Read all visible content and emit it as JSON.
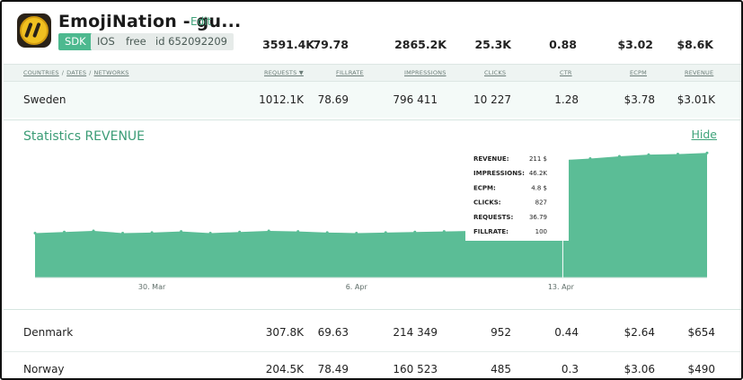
{
  "app": {
    "title": "EmojiNation - gu...",
    "edit_label": "Edit",
    "tags": [
      "SDK",
      "IOS",
      "free",
      "id 652092209"
    ]
  },
  "summary": [
    "3591.4K",
    "79.78",
    "2865.2K",
    "25.3K",
    "0.88",
    "$3.02",
    "$8.6K"
  ],
  "breadcrumb": [
    "COUNTRIES",
    "DATES",
    "NETWORKS"
  ],
  "columns": [
    "REQUESTS ▼",
    "FILLRATE",
    "IMPRESSIONS",
    "CLICKS",
    "CTR",
    "ECPM",
    "REVENUE"
  ],
  "rows": [
    {
      "name": "Sweden",
      "values": [
        "1012.1K",
        "78.69",
        "796 411",
        "10 227",
        "1.28",
        "$3.78",
        "$3.01K"
      ]
    },
    {
      "name": "Denmark",
      "values": [
        "307.8K",
        "69.63",
        "214 349",
        "952",
        "0.44",
        "$2.64",
        "$654"
      ]
    },
    {
      "name": "Norway",
      "values": [
        "204.5K",
        "78.49",
        "160 523",
        "485",
        "0.3",
        "$3.06",
        "$490"
      ]
    }
  ],
  "stats": {
    "title": "Statistics REVENUE",
    "hide_label": "Hide"
  },
  "tooltip": {
    "items": [
      {
        "label": "REVENUE:",
        "value": "211 $"
      },
      {
        "label": "IMPRESSIONS:",
        "value": "46.2K"
      },
      {
        "label": "ECPM:",
        "value": "4.8 $"
      },
      {
        "label": "CLICKS:",
        "value": "827"
      },
      {
        "label": "REQUESTS:",
        "value": "36.79"
      },
      {
        "label": "FILLRATE:",
        "value": "100"
      }
    ]
  },
  "colors": {
    "accent": "#4db98f",
    "area": "#5bbd96",
    "link": "#3fa37a"
  },
  "chart_data": {
    "type": "area",
    "title": "",
    "x_ticks": [
      "30. Mar",
      "6. Apr",
      "13. Apr"
    ],
    "x": [
      "2015-03-26",
      "2015-03-27",
      "2015-03-28",
      "2015-03-29",
      "2015-03-30",
      "2015-03-31",
      "2015-04-01",
      "2015-04-02",
      "2015-04-03",
      "2015-04-04",
      "2015-04-05",
      "2015-04-06",
      "2015-04-07",
      "2015-04-08",
      "2015-04-09",
      "2015-04-10",
      "2015-04-11",
      "2015-04-12",
      "2015-04-13",
      "2015-04-14",
      "2015-04-15",
      "2015-04-16",
      "2015-04-17",
      "2015-04-18"
    ],
    "series": [
      {
        "values": [
          80,
          82,
          84,
          80,
          81,
          83,
          80,
          82,
          84,
          83,
          81,
          80,
          81,
          82,
          83,
          84,
          85,
          86,
          211,
          214,
          218,
          221,
          222,
          224
        ]
      }
    ],
    "ylim": [
      0,
      260
    ],
    "grid": false,
    "legend": "none"
  }
}
